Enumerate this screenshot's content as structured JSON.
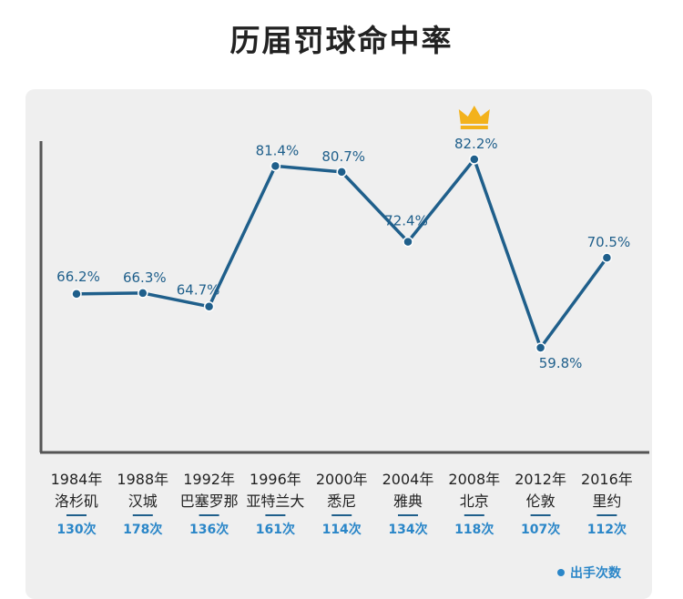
{
  "title": "历届罚球命中率",
  "chart_data": {
    "type": "line",
    "title": "历届罚球命中率",
    "categories": [
      {
        "year": "1984年",
        "city": "洛杉矶",
        "attempts": "130次"
      },
      {
        "year": "1988年",
        "city": "汉城",
        "attempts": "178次"
      },
      {
        "year": "1992年",
        "city": "巴塞罗那",
        "attempts": "136次"
      },
      {
        "year": "1996年",
        "city": "亚特兰大",
        "attempts": "161次"
      },
      {
        "year": "2000年",
        "city": "悉尼",
        "attempts": "114次"
      },
      {
        "year": "2004年",
        "city": "雅典",
        "attempts": "134次"
      },
      {
        "year": "2008年",
        "city": "北京",
        "attempts": "118次"
      },
      {
        "year": "2012年",
        "city": "伦敦",
        "attempts": "107次"
      },
      {
        "year": "2016年",
        "city": "里约",
        "attempts": "112次"
      }
    ],
    "series": [
      {
        "values": [
          66.2,
          66.3,
          64.7,
          81.4,
          80.7,
          72.4,
          82.2,
          59.8,
          70.5
        ]
      }
    ],
    "value_labels": [
      "66.2%",
      "66.3%",
      "64.7%",
      "81.4%",
      "80.7%",
      "72.4%",
      "82.2%",
      "59.8%",
      "70.5%"
    ],
    "highlight": {
      "index": 6,
      "icon": "crown-icon",
      "color": "#f3b21b"
    },
    "legend": {
      "label": "出手次数",
      "color": "#2a86c8",
      "position": "bottom-right"
    },
    "colors": {
      "line": "#1f5f8b",
      "point_stroke": "#ffffff",
      "label": "#1f5f8b",
      "axis": "#555555",
      "attempts": "#2a86c8"
    },
    "grid": false
  }
}
